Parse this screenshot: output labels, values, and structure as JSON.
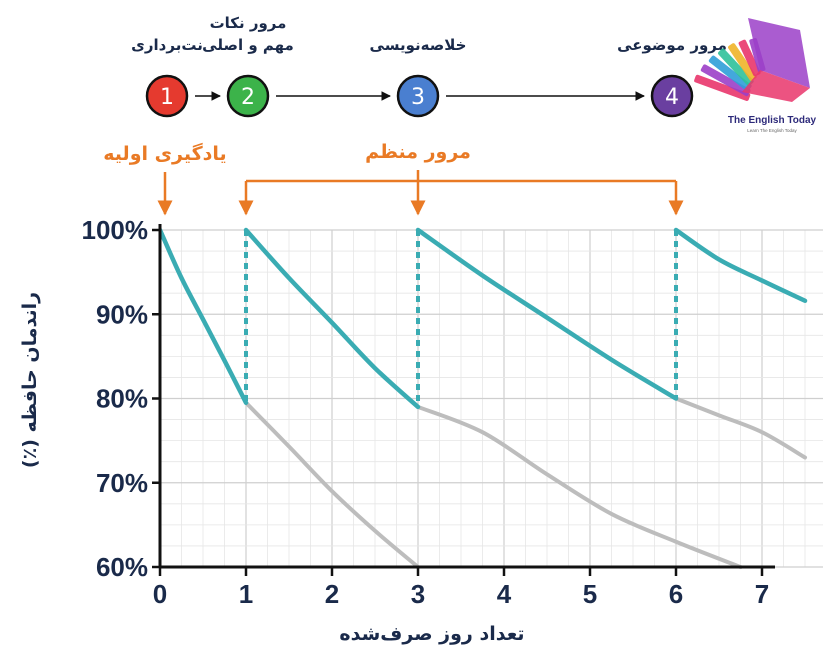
{
  "steps": [
    {
      "number": "1",
      "label": [
        "نت‌برداری"
      ],
      "color": "#e53a2f"
    },
    {
      "number": "2",
      "label": [
        "مرور نکات",
        "مهم و اصلی"
      ],
      "color": "#3cb34a"
    },
    {
      "number": "3",
      "label": [
        "خلاصه‌نویسی"
      ],
      "color": "#4a7fd0"
    },
    {
      "number": "4",
      "label": [
        "مرور موضوعی"
      ],
      "color": "#6a3fa0"
    }
  ],
  "annotations": {
    "initial_learning": "یادگیری اولیه",
    "regular_review": "مرور منظم"
  },
  "logo": {
    "text": "The English Today",
    "tagline": "Learn The English Today",
    "colors": [
      "#e9356b",
      "#9b3fc8",
      "#2f9fd8",
      "#2fc19a",
      "#f0b429"
    ]
  },
  "colors": {
    "accent_orange": "#e97a25",
    "retention_teal": "#3aacb3",
    "forgetting_gray": "#bdbdbd",
    "axis": "#111111",
    "grid": "#dcdcdc"
  },
  "chart_data": {
    "type": "line",
    "xlabel": "تعداد روز صرف‌شده",
    "ylabel": "راندمان حافظه (٪)",
    "xlim": [
      0,
      7
    ],
    "ylim": [
      60,
      100
    ],
    "x_ticks": [
      "0",
      "1",
      "2",
      "3",
      "4",
      "5",
      "6",
      "7"
    ],
    "y_ticks": [
      "60%",
      "70%",
      "80%",
      "90%",
      "100%"
    ],
    "grid": true,
    "review_days": [
      1,
      3,
      6
    ],
    "series": [
      {
        "style": "retention",
        "x": [
          0,
          0.25,
          0.5,
          0.75,
          1
        ],
        "y": [
          100,
          94.3,
          89.4,
          84.5,
          79.5
        ]
      },
      {
        "style": "retention",
        "x": [
          1,
          1.5,
          2,
          2.5,
          3
        ],
        "y": [
          100,
          94.3,
          89.0,
          83.6,
          79.0
        ]
      },
      {
        "style": "retention",
        "x": [
          3,
          3.75,
          4.5,
          5.25,
          6
        ],
        "y": [
          100,
          94.6,
          89.6,
          84.6,
          80.0
        ]
      },
      {
        "style": "retention",
        "x": [
          6,
          6.5,
          7,
          7.5
        ],
        "y": [
          100,
          96.5,
          94.0,
          91.6
        ]
      },
      {
        "style": "forgetting",
        "x": [
          1,
          1.5,
          2,
          2.5,
          3
        ],
        "y": [
          79.5,
          74.3,
          69.0,
          64.3,
          60.0
        ]
      },
      {
        "style": "forgetting",
        "x": [
          3,
          3.75,
          4.5,
          5.25,
          6,
          6.75
        ],
        "y": [
          79.0,
          76.0,
          71.0,
          66.3,
          63.0,
          60.0
        ]
      },
      {
        "style": "forgetting",
        "x": [
          6,
          6.5,
          7,
          7.5
        ],
        "y": [
          80.0,
          78.0,
          76.0,
          73.0
        ]
      }
    ],
    "step_links": [
      [
        1,
        2
      ],
      [
        2,
        3
      ],
      [
        3,
        4
      ]
    ]
  }
}
